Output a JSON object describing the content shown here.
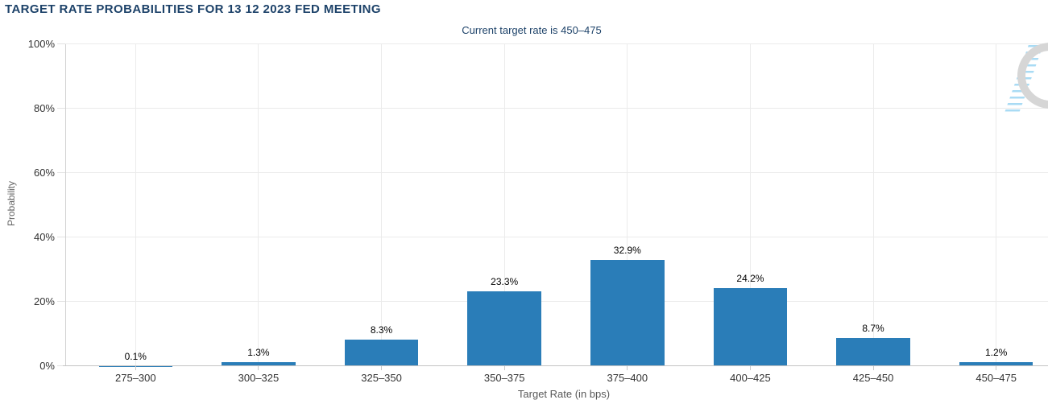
{
  "chart_data": {
    "type": "bar",
    "title": "TARGET RATE PROBABILITIES FOR 13 12 2023 FED MEETING",
    "subtitle": "Current target rate is 450–475",
    "xlabel": "Target Rate (in bps)",
    "ylabel": "Probability",
    "categories": [
      "275–300",
      "300–325",
      "325–350",
      "350–375",
      "375–400",
      "400–425",
      "425–450",
      "450–475"
    ],
    "values": [
      0.1,
      1.3,
      8.3,
      23.3,
      32.9,
      24.2,
      8.7,
      1.2
    ],
    "data_labels": [
      "0.1%",
      "1.3%",
      "8.3%",
      "23.3%",
      "32.9%",
      "24.2%",
      "8.7%",
      "1.2%"
    ],
    "ylim": [
      0,
      100
    ],
    "ytick_labels": [
      "0%",
      "20%",
      "40%",
      "60%",
      "80%",
      "100%"
    ],
    "grid": true,
    "legend": false,
    "bar_color": "#2a7db8",
    "title_color": "#1d4269",
    "subtitle_color": "#1d4269"
  },
  "watermark": {
    "letter": "Q",
    "q_color": "#d6d6d6",
    "dash_color": "#a9dbf4"
  }
}
